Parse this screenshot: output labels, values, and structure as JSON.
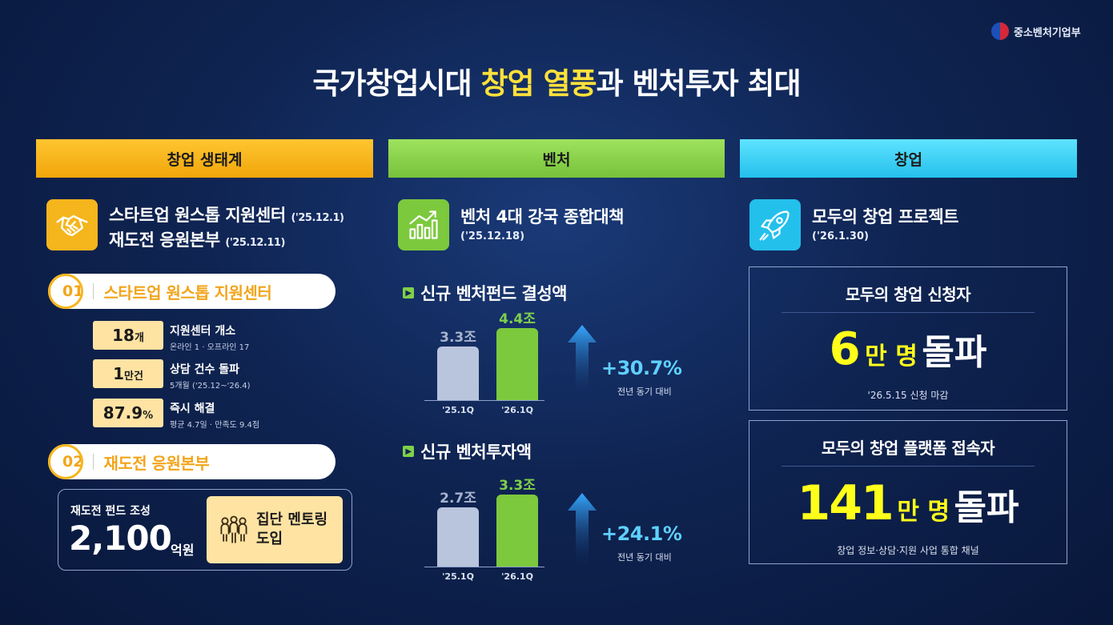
{
  "ministry": {
    "name": "중소벤처기업부"
  },
  "title": {
    "part1": "국가창업시대 ",
    "highlight": "창업 열풍",
    "part2": "과 벤처투자 최대"
  },
  "columns": {
    "ecosystem": "창업 생태계",
    "venture": "벤처",
    "startup": "창업"
  },
  "ecosystem": {
    "icon": "handshake-icon",
    "line1": "스타트업 원스톱 지원센터",
    "line1_date": "('25.12.1)",
    "line2": "재도전 응원본부",
    "line2_date": "('25.12.11)",
    "section1": {
      "num": "01",
      "label": "스타트업 원스톱 지원센터"
    },
    "stats": [
      {
        "value": "18",
        "unit": "개",
        "title": "지원센터 개소",
        "sub": "온라인 1 · 오프라인 17"
      },
      {
        "value": "1",
        "unit": "만건",
        "title": "상담 건수 돌파",
        "sub": "5개월 ('25.12~'26.4)"
      },
      {
        "value": "87.9",
        "unit": "%",
        "title": "즉시 해결",
        "sub": "평균 4.7일 · 만족도 9.4점"
      }
    ],
    "section2": {
      "num": "02",
      "label": "재도전 응원본부"
    },
    "fund": {
      "label": "재도전 펀드 조성",
      "value": "2,100",
      "unit": "억원"
    },
    "mentoring": {
      "icon": "group-people-icon",
      "text": "집단 멘토링 도입"
    }
  },
  "venture": {
    "icon": "growth-chart-icon",
    "policy_title": "벤처 4대 강국 종합대책",
    "policy_date": "('25.12.18)",
    "fund_section": "신규 벤처펀드 결성액",
    "invest_section": "신규 벤처투자액",
    "fund_growth": "+30.7%",
    "invest_growth": "+24.1%",
    "growth_label": "전년 동기 대비"
  },
  "chart_data": [
    {
      "type": "bar",
      "title": "신규 벤처펀드 결성액",
      "categories": [
        "'25.1Q",
        "'26.1Q"
      ],
      "values": [
        3.3,
        4.4
      ],
      "value_labels": [
        "3.3조",
        "4.4조"
      ],
      "unit": "조",
      "colors": [
        "#b9c4dd",
        "#7cc93d"
      ]
    },
    {
      "type": "bar",
      "title": "신규 벤처투자액",
      "categories": [
        "'25.1Q",
        "'26.1Q"
      ],
      "values": [
        2.7,
        3.3
      ],
      "value_labels": [
        "2.7조",
        "3.3조"
      ],
      "unit": "조",
      "colors": [
        "#b9c4dd",
        "#7cc93d"
      ]
    }
  ],
  "startup": {
    "icon": "rocket-icon",
    "project_title": "모두의 창업 프로젝트",
    "project_date": "('26.1.30)",
    "applicants": {
      "title": "모두의 창업 신청자",
      "num": "6",
      "unit": "만 명",
      "word": "돌파",
      "note": "'26.5.15 신청 마감"
    },
    "platform": {
      "title": "모두의 창업 플랫폼 접속자",
      "num": "141",
      "unit": "만 명",
      "word": "돌파",
      "note": "창업 정보·상담·지원 사업 통합 채널"
    }
  },
  "colors": {
    "yellow": "#ffe13a",
    "green": "#7cc93d",
    "cyan": "#24c0ec",
    "orange": "#f2a51a"
  }
}
